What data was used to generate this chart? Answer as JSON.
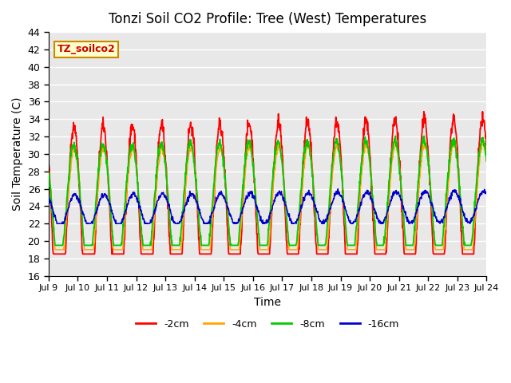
{
  "title": "Tonzi Soil CO2 Profile: Tree (West) Temperatures",
  "xlabel": "Time",
  "ylabel": "Soil Temperature (C)",
  "ylim": [
    16,
    44
  ],
  "yticks": [
    16,
    18,
    20,
    22,
    24,
    26,
    28,
    30,
    32,
    34,
    36,
    38,
    40,
    42,
    44
  ],
  "xtick_positions": [
    0,
    1,
    2,
    3,
    4,
    5,
    6,
    7,
    8,
    9,
    10,
    11,
    12,
    13,
    14,
    15
  ],
  "xtick_labels": [
    "Jul 9",
    "Jul 10",
    "Jul 11",
    "Jul 12",
    "Jul 13",
    "Jul 14",
    "Jul 15",
    "Jul 16",
    "Jul 17",
    "Jul 18",
    "Jul 19",
    "Jul 20",
    "Jul 21",
    "Jul 22",
    "Jul 23",
    "Jul 24"
  ],
  "legend_labels": [
    "-2cm",
    "-4cm",
    "-8cm",
    "-16cm"
  ],
  "legend_colors": [
    "#ff0000",
    "#ffa500",
    "#00cc00",
    "#0000cc"
  ],
  "line_colors": [
    "#ff0000",
    "#ffa500",
    "#00cc00",
    "#0000cc"
  ],
  "annotation_text": "TZ_soilco2",
  "annotation_color": "#cc0000",
  "annotation_bg": "#ffffcc",
  "annotation_border": "#cc8800",
  "background_color": "#e8e8e8",
  "grid_color": "#ffffff",
  "n_days": 15,
  "points_per_day": 96,
  "seed": 42,
  "base_temps": [
    21.5,
    23.0,
    24.0,
    23.5
  ],
  "amplitudes": [
    11.5,
    7.5,
    7.0,
    1.8
  ],
  "phases": [
    0.62,
    0.63,
    0.61,
    0.65
  ],
  "trends": [
    0.07,
    0.05,
    0.05,
    0.03
  ],
  "noise_amps": [
    0.4,
    0.25,
    0.25,
    0.15
  ]
}
